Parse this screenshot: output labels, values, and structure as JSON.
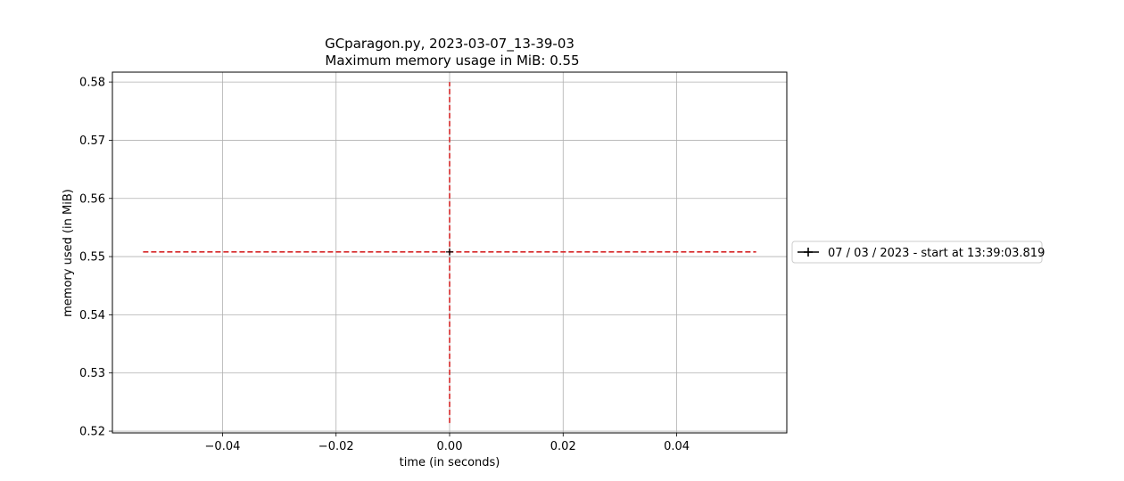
{
  "chart_data": {
    "type": "line",
    "title": "GCparagon.py, 2023-03-07_13-39-03",
    "subtitle": "Maximum memory usage in MiB: 0.55",
    "xlabel": "time (in seconds)",
    "ylabel": "memory used (in MiB)",
    "xlim": [
      -0.0594,
      0.0594
    ],
    "ylim": [
      0.5197,
      0.5817
    ],
    "xticks": [
      -0.04,
      -0.02,
      0.0,
      0.02,
      0.04
    ],
    "xtick_labels": [
      "−0.04",
      "−0.02",
      "0.00",
      "0.02",
      "0.04"
    ],
    "yticks": [
      0.52,
      0.53,
      0.54,
      0.55,
      0.56,
      0.57,
      0.58
    ],
    "ytick_labels": [
      "0.52",
      "0.53",
      "0.54",
      "0.55",
      "0.56",
      "0.57",
      "0.58"
    ],
    "grid": true,
    "legend_placement": "right (outside plot)",
    "series": [
      {
        "name": "07 / 03 / 2023 - start at 13:39:03.819",
        "x": [
          0.0
        ],
        "y": [
          0.5508
        ],
        "color": "#000000",
        "marker": "+"
      }
    ],
    "annotations": [
      {
        "type": "hline",
        "y": 0.5508,
        "xrange": [
          -0.054,
          0.054
        ],
        "style": "dashed",
        "color": "#d62728"
      },
      {
        "type": "vline",
        "x": 0.0,
        "yrange": [
          0.5214,
          0.58
        ],
        "style": "dashed",
        "color": "#d62728"
      }
    ]
  }
}
